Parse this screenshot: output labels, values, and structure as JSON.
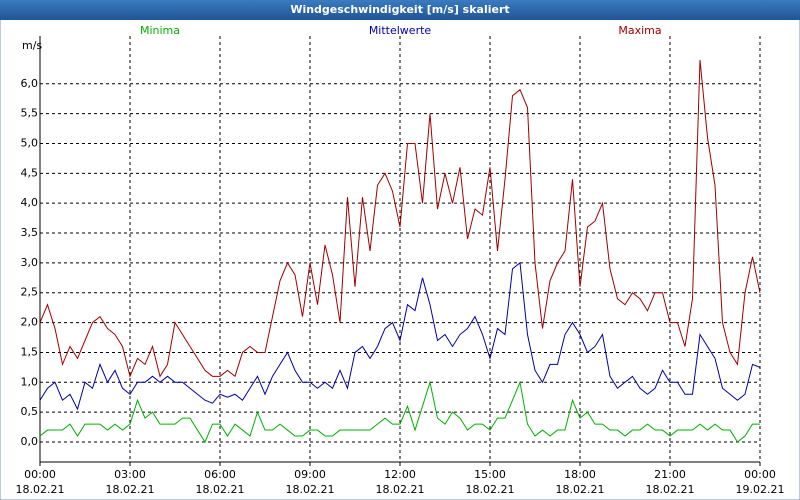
{
  "chart_data": {
    "type": "line",
    "title": "Windgeschwindigkeit [m/s] skaliert",
    "ylabel": "m/s",
    "x": [
      0,
      0.25,
      0.5,
      0.75,
      1,
      1.25,
      1.5,
      1.75,
      2,
      2.25,
      2.5,
      2.75,
      3,
      3.25,
      3.5,
      3.75,
      4,
      4.25,
      4.5,
      4.75,
      5,
      5.25,
      5.5,
      5.75,
      6,
      6.25,
      6.5,
      6.75,
      7,
      7.25,
      7.5,
      7.75,
      8,
      8.25,
      8.5,
      8.75,
      9,
      9.25,
      9.5,
      9.75,
      10,
      10.25,
      10.5,
      10.75,
      11,
      11.25,
      11.5,
      11.75,
      12,
      12.25,
      12.5,
      12.75,
      13,
      13.25,
      13.5,
      13.75,
      14,
      14.25,
      14.5,
      14.75,
      15,
      15.25,
      15.5,
      15.75,
      16,
      16.25,
      16.5,
      16.75,
      17,
      17.25,
      17.5,
      17.75,
      18,
      18.25,
      18.5,
      18.75,
      19,
      19.25,
      19.5,
      19.75,
      20,
      20.25,
      20.5,
      20.75,
      21,
      21.25,
      21.5,
      21.75,
      22,
      22.25,
      22.5,
      22.75,
      23,
      23.25,
      23.5,
      23.75,
      24
    ],
    "series": [
      {
        "name": "Minima",
        "color": "#00b000",
        "values": [
          0.1,
          0.2,
          0.2,
          0.2,
          0.3,
          0.1,
          0.3,
          0.3,
          0.3,
          0.2,
          0.3,
          0.2,
          0.3,
          0.7,
          0.4,
          0.5,
          0.3,
          0.3,
          0.3,
          0.4,
          0.4,
          0.2,
          0.0,
          0.3,
          0.3,
          0.1,
          0.3,
          0.2,
          0.1,
          0.5,
          0.2,
          0.2,
          0.3,
          0.2,
          0.1,
          0.1,
          0.2,
          0.2,
          0.1,
          0.1,
          0.2,
          0.2,
          0.2,
          0.2,
          0.2,
          0.3,
          0.4,
          0.3,
          0.3,
          0.6,
          0.2,
          0.6,
          1.0,
          0.4,
          0.3,
          0.5,
          0.4,
          0.2,
          0.3,
          0.3,
          0.2,
          0.4,
          0.4,
          0.7,
          1.0,
          0.3,
          0.1,
          0.2,
          0.1,
          0.2,
          0.2,
          0.7,
          0.4,
          0.5,
          0.3,
          0.3,
          0.2,
          0.2,
          0.1,
          0.2,
          0.2,
          0.3,
          0.2,
          0.2,
          0.1,
          0.2,
          0.2,
          0.2,
          0.3,
          0.2,
          0.3,
          0.2,
          0.2,
          0.0,
          0.1,
          0.3,
          0.3
        ]
      },
      {
        "name": "Mittelwerte",
        "color": "#0000a8",
        "values": [
          0.7,
          0.9,
          1.0,
          0.7,
          0.8,
          0.55,
          1.0,
          0.9,
          1.3,
          1.0,
          1.2,
          0.9,
          0.8,
          1.0,
          1.0,
          1.1,
          1.0,
          1.1,
          1.0,
          1.0,
          0.9,
          0.8,
          0.7,
          0.65,
          0.8,
          0.75,
          0.8,
          0.7,
          0.9,
          1.1,
          0.8,
          1.1,
          1.3,
          1.5,
          1.2,
          1.0,
          1.0,
          0.9,
          1.0,
          0.9,
          1.2,
          0.9,
          1.5,
          1.6,
          1.4,
          1.6,
          1.9,
          2.0,
          1.7,
          2.3,
          2.2,
          2.75,
          2.3,
          1.7,
          1.8,
          1.6,
          1.8,
          1.9,
          2.1,
          1.8,
          1.4,
          1.9,
          1.8,
          2.9,
          3.0,
          1.8,
          1.2,
          1.0,
          1.3,
          1.3,
          1.8,
          2.0,
          1.8,
          1.5,
          1.6,
          1.8,
          1.1,
          0.9,
          1.0,
          1.1,
          0.9,
          0.8,
          0.9,
          1.2,
          1.0,
          1.0,
          0.8,
          0.8,
          1.8,
          1.6,
          1.4,
          0.9,
          0.8,
          0.7,
          0.8,
          1.3,
          1.25
        ]
      },
      {
        "name": "Maxima",
        "color": "#a00000",
        "values": [
          2.0,
          2.3,
          1.9,
          1.3,
          1.6,
          1.4,
          1.7,
          2.0,
          2.1,
          1.9,
          1.8,
          1.6,
          1.1,
          1.4,
          1.3,
          1.6,
          1.1,
          1.3,
          2.0,
          1.8,
          1.6,
          1.4,
          1.2,
          1.1,
          1.1,
          1.2,
          1.1,
          1.5,
          1.6,
          1.5,
          1.5,
          2.1,
          2.7,
          3.0,
          2.8,
          2.1,
          3.0,
          2.3,
          3.3,
          2.8,
          2.0,
          4.1,
          2.6,
          4.1,
          3.2,
          4.3,
          4.5,
          4.2,
          3.6,
          5.0,
          5.0,
          4.0,
          5.5,
          3.9,
          4.5,
          4.0,
          4.6,
          3.4,
          3.9,
          3.8,
          4.6,
          3.2,
          4.4,
          5.8,
          5.9,
          5.6,
          3.0,
          1.9,
          2.7,
          3.0,
          3.2,
          4.4,
          2.6,
          3.6,
          3.7,
          4.0,
          2.9,
          2.4,
          2.3,
          2.5,
          2.4,
          2.2,
          2.5,
          2.5,
          2.0,
          2.0,
          1.6,
          2.4,
          6.4,
          5.1,
          4.3,
          2.0,
          1.5,
          1.3,
          2.5,
          3.1,
          2.5
        ]
      }
    ],
    "xlim": [
      0,
      24
    ],
    "xticks": [
      {
        "value": 0,
        "label": "00:00",
        "sublabel": "18.02.21"
      },
      {
        "value": 3,
        "label": "03:00",
        "sublabel": "18.02.21"
      },
      {
        "value": 6,
        "label": "06:00",
        "sublabel": "18.02.21"
      },
      {
        "value": 9,
        "label": "09:00",
        "sublabel": "18.02.21"
      },
      {
        "value": 12,
        "label": "12:00",
        "sublabel": "18.02.21"
      },
      {
        "value": 15,
        "label": "15:00",
        "sublabel": "18.02.21"
      },
      {
        "value": 18,
        "label": "18:00",
        "sublabel": "18.02.21"
      },
      {
        "value": 21,
        "label": "21:00",
        "sublabel": "18.02.21"
      },
      {
        "value": 24,
        "label": "00:00",
        "sublabel": "19.02.21"
      }
    ],
    "ylim": [
      -0.335,
      6.8
    ],
    "yticks": [
      {
        "value": 0,
        "label": "0,0"
      },
      {
        "value": 0.5,
        "label": "0,5"
      },
      {
        "value": 1,
        "label": "1,0"
      },
      {
        "value": 1.5,
        "label": "1,5"
      },
      {
        "value": 2,
        "label": "2,0"
      },
      {
        "value": 2.5,
        "label": "2,5"
      },
      {
        "value": 3,
        "label": "3,0"
      },
      {
        "value": 3.5,
        "label": "3,5"
      },
      {
        "value": 4,
        "label": "4,0"
      },
      {
        "value": 4.5,
        "label": "4,5"
      },
      {
        "value": 5,
        "label": "5,0"
      },
      {
        "value": 5.5,
        "label": "5,5"
      },
      {
        "value": 6,
        "label": "6,0"
      }
    ],
    "grid": true
  }
}
